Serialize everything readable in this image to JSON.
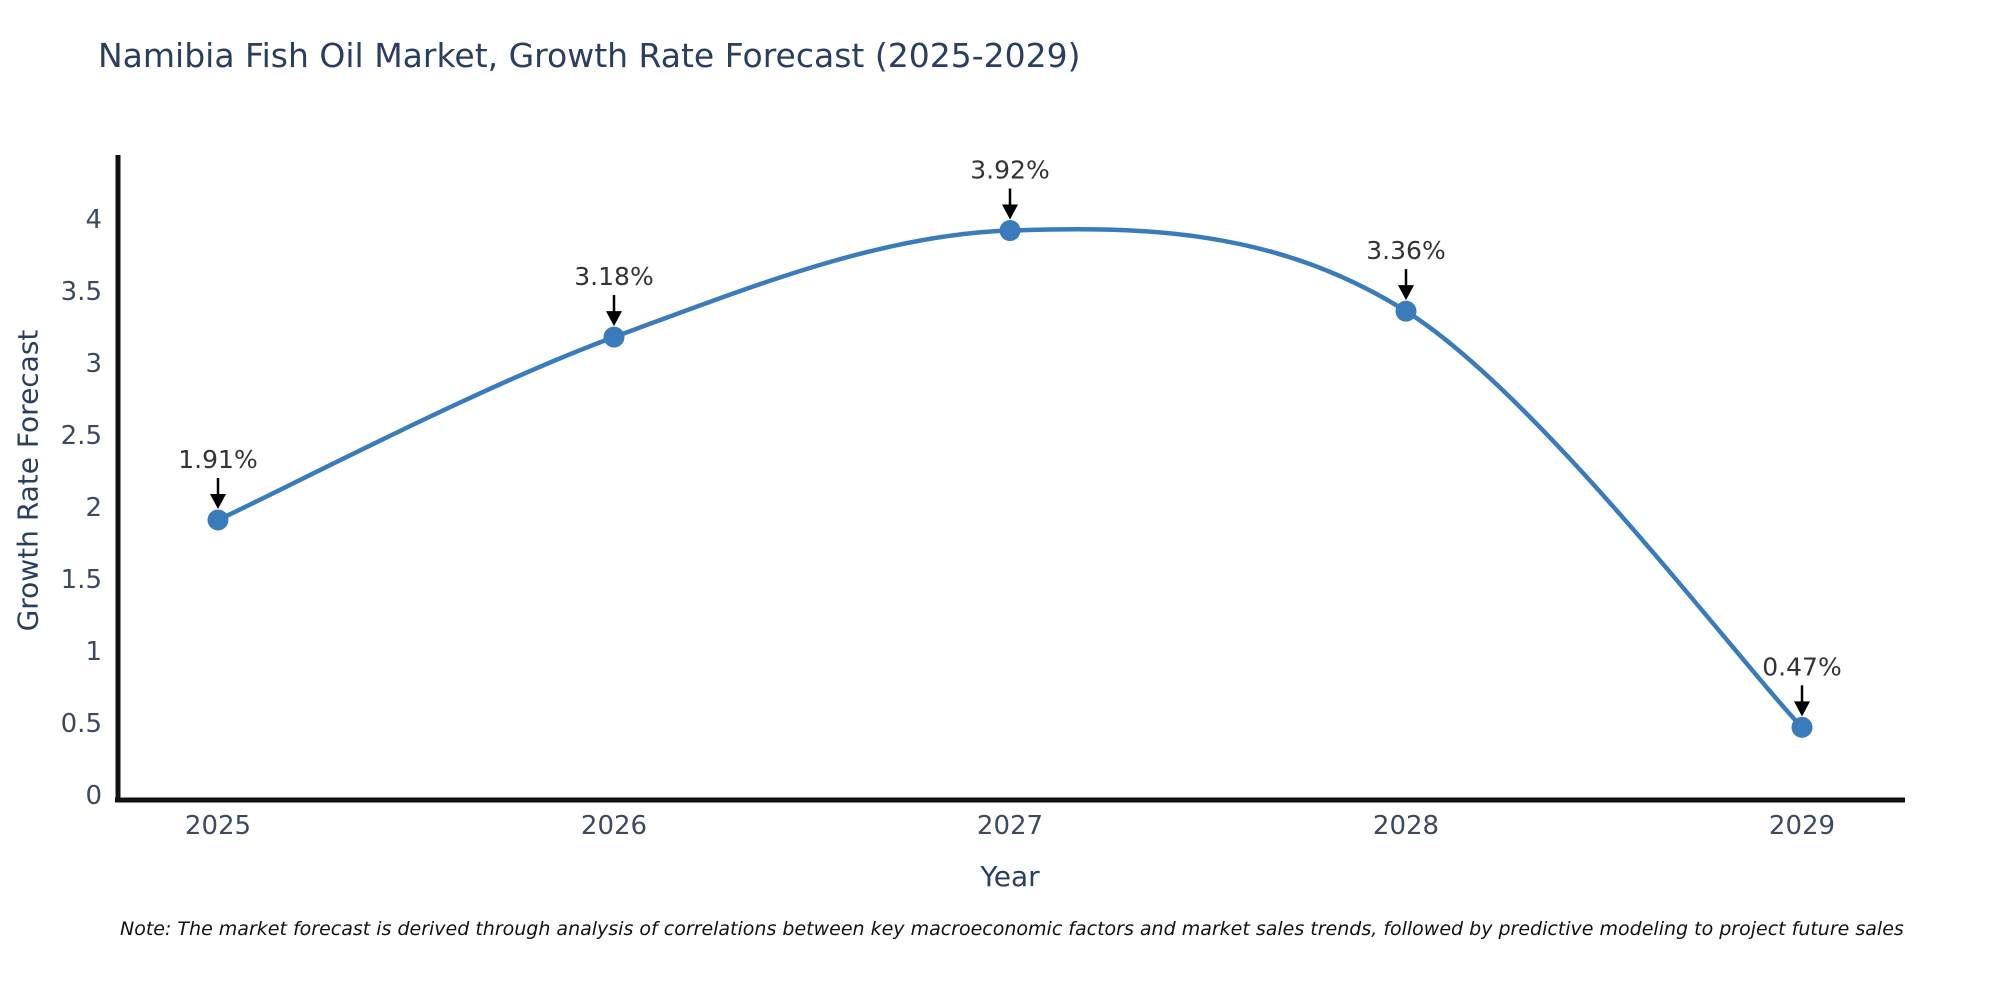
{
  "note": "Note: The market forecast is derived through analysis of correlations between key macroeconomic factors and market sales trends, followed by predictive modeling to project future sales",
  "chart_data": {
    "type": "line",
    "title": "Namibia Fish Oil Market, Growth Rate Forecast (2025-2029)",
    "xlabel": "Year",
    "ylabel": "Growth Rate Forecast",
    "categories": [
      "2025",
      "2026",
      "2027",
      "2028",
      "2029"
    ],
    "values": [
      1.91,
      3.18,
      3.92,
      3.36,
      0.47
    ],
    "point_labels": [
      "1.91%",
      "3.18%",
      "3.92%",
      "3.36%",
      "0.47%"
    ],
    "ylim": [
      0,
      4
    ],
    "yticks": [
      0,
      0.5,
      1,
      1.5,
      2,
      2.5,
      3,
      3.5,
      4
    ],
    "line_shape": "spline",
    "grid": false,
    "legend_position": "none",
    "colors": {
      "line": "#3a7cbb",
      "marker": "#3a7cbb",
      "arrow": "#000000",
      "axis": "#111111",
      "tick_label": "#3d4a5c",
      "title": "#2a3f5f",
      "annotation": "#333333"
    }
  }
}
